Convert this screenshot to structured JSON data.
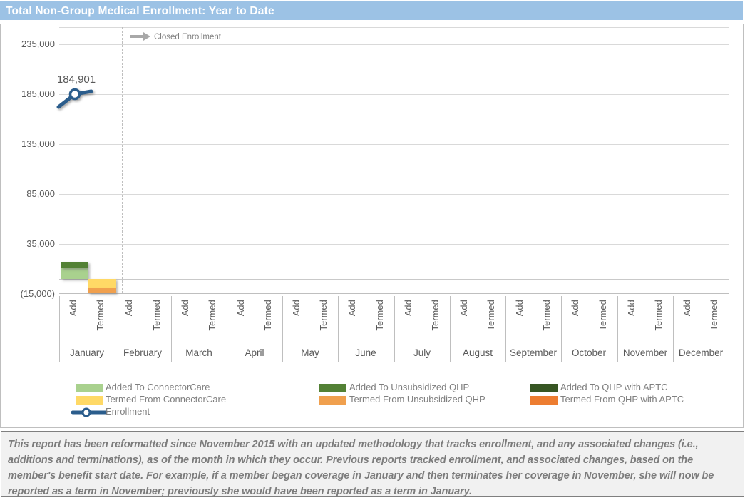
{
  "chart_data": {
    "type": "bar",
    "subtype": "stacked-column-with-line",
    "title": "Total Non-Group Medical Enrollment: Year to Date",
    "annotation": "Closed Enrollment",
    "months": [
      "January",
      "February",
      "March",
      "April",
      "May",
      "June",
      "July",
      "August",
      "September",
      "October",
      "November",
      "December"
    ],
    "sub_categories": [
      "Add",
      "Termed"
    ],
    "y_ticks": [
      {
        "label": "235,000",
        "value": 235000
      },
      {
        "label": "185,000",
        "value": 185000
      },
      {
        "label": "135,000",
        "value": 135000
      },
      {
        "label": "85,000",
        "value": 85000
      },
      {
        "label": "35,000",
        "value": 35000
      },
      {
        "label": "(15,000)",
        "value": -15000
      }
    ],
    "ylim": [
      -15000,
      235000
    ],
    "gridline_interval": 50000,
    "grid": true,
    "add_series": [
      {
        "name": "Added To ConnectorCare",
        "color": "#A9D18E"
      },
      {
        "name": "Added To Unsubsidized QHP",
        "color": "#538135"
      },
      {
        "name": "Added To QHP with APTC",
        "color": "#375623"
      }
    ],
    "termed_series": [
      {
        "name": "Termed From ConnectorCare",
        "color": "#FFD966"
      },
      {
        "name": "Termed From Unsubsidized QHP",
        "color": "#F0A04E"
      },
      {
        "name": "Termed From QHP with APTC",
        "color": "#ED7D31"
      }
    ],
    "values": {
      "January": {
        "add": [
          10500,
          7000,
          0
        ],
        "termed": [
          -9500,
          -4800,
          0
        ]
      },
      "February": {
        "add": [
          0,
          0,
          0
        ],
        "termed": [
          0,
          0,
          0
        ]
      },
      "March": {
        "add": [
          0,
          0,
          0
        ],
        "termed": [
          0,
          0,
          0
        ]
      },
      "April": {
        "add": [
          0,
          0,
          0
        ],
        "termed": [
          0,
          0,
          0
        ]
      },
      "May": {
        "add": [
          0,
          0,
          0
        ],
        "termed": [
          0,
          0,
          0
        ]
      },
      "June": {
        "add": [
          0,
          0,
          0
        ],
        "termed": [
          0,
          0,
          0
        ]
      },
      "July": {
        "add": [
          0,
          0,
          0
        ],
        "termed": [
          0,
          0,
          0
        ]
      },
      "August": {
        "add": [
          0,
          0,
          0
        ],
        "termed": [
          0,
          0,
          0
        ]
      },
      "September": {
        "add": [
          0,
          0,
          0
        ],
        "termed": [
          0,
          0,
          0
        ]
      },
      "October": {
        "add": [
          0,
          0,
          0
        ],
        "termed": [
          0,
          0,
          0
        ]
      },
      "November": {
        "add": [
          0,
          0,
          0
        ],
        "termed": [
          0,
          0,
          0
        ]
      },
      "December": {
        "add": [
          0,
          0,
          0
        ],
        "termed": [
          0,
          0,
          0
        ]
      }
    },
    "enrollment": {
      "name": "Enrollment",
      "month": "January",
      "sub": "Add",
      "value": 184901,
      "label": "184,901",
      "color": "#2B5D8C"
    },
    "legend_position": "bottom"
  },
  "legend": {
    "items": [
      {
        "label": "Added To ConnectorCare",
        "color": "#A9D18E",
        "type": "swatch",
        "col": 0,
        "row": 0
      },
      {
        "label": "Added To Unsubsidized QHP",
        "color": "#538135",
        "type": "swatch",
        "col": 1,
        "row": 0
      },
      {
        "label": "Added To QHP with APTC",
        "color": "#375623",
        "type": "swatch",
        "col": 2,
        "row": 0
      },
      {
        "label": "Termed From ConnectorCare",
        "color": "#FFD966",
        "type": "swatch",
        "col": 0,
        "row": 1
      },
      {
        "label": "Termed From Unsubsidized QHP",
        "color": "#F0A04E",
        "type": "swatch",
        "col": 1,
        "row": 1
      },
      {
        "label": "Termed From QHP with APTC",
        "color": "#ED7D31",
        "type": "swatch",
        "col": 2,
        "row": 1
      },
      {
        "label": "Enrollment",
        "color": "#2B5D8C",
        "type": "line",
        "col": 0,
        "row": 2
      }
    ]
  },
  "footer": {
    "text": "This report has been reformatted since November 2015 with an updated methodology that tracks enrollment, and any associated changes (i.e., additions and terminations), as of the month in which they occur.  Previous reports tracked enrollment, and associated changes, based on the member's benefit start date.  For example, if a member began coverage in January and then terminates her coverage in November, she will now be reported as a term in November; previously she would have been reported as a term in January."
  },
  "colors": {
    "title_bar_bg": "#9CC2E5",
    "title_text": "#FFFFFF",
    "gridline": "#D9D9D9",
    "axis_text": "#595959",
    "legend_text": "#7F7F7F",
    "enrollment_line": "#2B5D8C",
    "footer_bg": "#F1F1F1",
    "footer_text": "#7C7C7C"
  }
}
